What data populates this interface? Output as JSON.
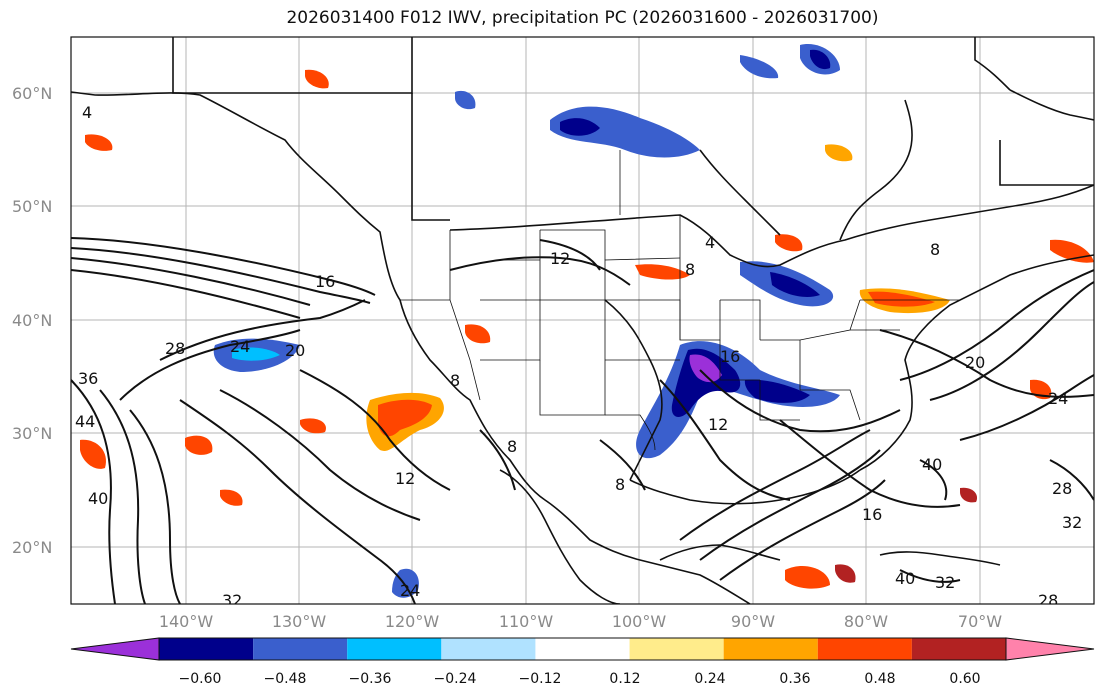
{
  "title": "2026031400 F012 IWV, precipitation PC (2026031600 - 2026031700)",
  "lat_labels": [
    "60°N",
    "50°N",
    "40°N",
    "30°N",
    "20°N"
  ],
  "lon_labels": [
    "140°W",
    "130°W",
    "120°W",
    "110°W",
    "100°W",
    "90°W",
    "80°W",
    "70°W"
  ],
  "contour_labels": [
    "16",
    "12",
    "8",
    "28",
    "24",
    "20",
    "36",
    "44",
    "40",
    "32",
    "24",
    "12",
    "8",
    "16",
    "12",
    "8",
    "20",
    "24",
    "40",
    "28",
    "32",
    "32",
    "40",
    "28",
    "4",
    "4",
    "16",
    "8",
    "8"
  ],
  "colorbar": {
    "ticks": [
      "−0.60",
      "−0.48",
      "−0.36",
      "−0.24",
      "−0.12",
      "0.12",
      "0.24",
      "0.36",
      "0.48",
      "0.60"
    ],
    "colors": [
      "#9b30d9",
      "#00008b",
      "#3a5fcd",
      "#00bfff",
      "#b0e2ff",
      "#ffffff",
      "#ffec8b",
      "#ffa500",
      "#ff4500",
      "#b22222",
      "#ff82ab"
    ]
  }
}
